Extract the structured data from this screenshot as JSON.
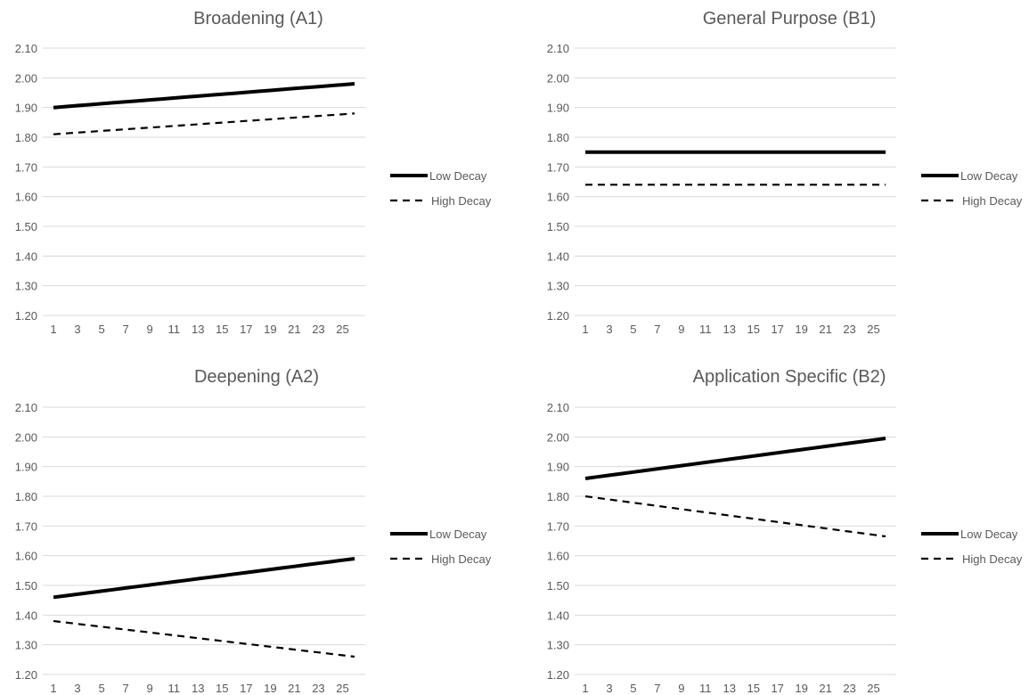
{
  "chart_data": [
    {
      "type": "line",
      "title": "Broadening (A1)",
      "xlabel": "",
      "ylabel": "",
      "x": [
        1,
        2,
        3,
        4,
        5,
        6,
        7,
        8,
        9,
        10,
        11,
        12,
        13,
        14,
        15,
        16,
        17,
        18,
        19,
        20,
        21,
        22,
        23,
        24,
        25,
        26
      ],
      "x_tick_labels": [
        "1",
        "3",
        "5",
        "7",
        "9",
        "11",
        "13",
        "15",
        "17",
        "19",
        "21",
        "23",
        "25"
      ],
      "y_tick_labels": [
        "2.10",
        "2.00",
        "1.90",
        "1.80",
        "1.70",
        "1.60",
        "1.50",
        "1.40",
        "1.30",
        "1.20"
      ],
      "ylim": [
        1.2,
        2.1
      ],
      "grid": true,
      "legend": "right",
      "series": [
        {
          "name": "Low Decay",
          "style": "solid",
          "start": 1.9,
          "end": 1.98
        },
        {
          "name": "High Decay",
          "style": "dashed",
          "start": 1.81,
          "end": 1.88
        }
      ]
    },
    {
      "type": "line",
      "title": "General Purpose (B1)",
      "xlabel": "",
      "ylabel": "",
      "x": [
        1,
        2,
        3,
        4,
        5,
        6,
        7,
        8,
        9,
        10,
        11,
        12,
        13,
        14,
        15,
        16,
        17,
        18,
        19,
        20,
        21,
        22,
        23,
        24,
        25,
        26
      ],
      "x_tick_labels": [
        "1",
        "3",
        "5",
        "7",
        "9",
        "11",
        "13",
        "15",
        "17",
        "19",
        "21",
        "23",
        "25"
      ],
      "y_tick_labels": [
        "2.10",
        "2.00",
        "1.90",
        "1.80",
        "1.70",
        "1.60",
        "1.50",
        "1.40",
        "1.30",
        "1.20"
      ],
      "ylim": [
        1.2,
        2.1
      ],
      "grid": true,
      "legend": "right",
      "series": [
        {
          "name": "Low Decay",
          "style": "solid",
          "start": 1.75,
          "end": 1.75
        },
        {
          "name": "High Decay",
          "style": "dashed",
          "start": 1.64,
          "end": 1.64
        }
      ]
    },
    {
      "type": "line",
      "title": "Deepening (A2)",
      "xlabel": "",
      "ylabel": "",
      "x": [
        1,
        2,
        3,
        4,
        5,
        6,
        7,
        8,
        9,
        10,
        11,
        12,
        13,
        14,
        15,
        16,
        17,
        18,
        19,
        20,
        21,
        22,
        23,
        24,
        25,
        26
      ],
      "x_tick_labels": [
        "1",
        "3",
        "5",
        "7",
        "9",
        "11",
        "13",
        "15",
        "17",
        "19",
        "21",
        "23",
        "25"
      ],
      "y_tick_labels": [
        "2.10",
        "2.00",
        "1.90",
        "1.80",
        "1.70",
        "1.60",
        "1.50",
        "1.40",
        "1.30",
        "1.20"
      ],
      "ylim": [
        1.2,
        2.1
      ],
      "grid": true,
      "legend": "right",
      "series": [
        {
          "name": "Low Decay",
          "style": "solid",
          "start": 1.46,
          "end": 1.59
        },
        {
          "name": "High Decay",
          "style": "dashed",
          "start": 1.38,
          "end": 1.26
        }
      ]
    },
    {
      "type": "line",
      "title": "Application Specific (B2)",
      "xlabel": "",
      "ylabel": "",
      "x": [
        1,
        2,
        3,
        4,
        5,
        6,
        7,
        8,
        9,
        10,
        11,
        12,
        13,
        14,
        15,
        16,
        17,
        18,
        19,
        20,
        21,
        22,
        23,
        24,
        25,
        26
      ],
      "x_tick_labels": [
        "1",
        "3",
        "5",
        "7",
        "9",
        "11",
        "13",
        "15",
        "17",
        "19",
        "21",
        "23",
        "25"
      ],
      "y_tick_labels": [
        "2.10",
        "2.00",
        "1.90",
        "1.80",
        "1.70",
        "1.60",
        "1.50",
        "1.40",
        "1.30",
        "1.20"
      ],
      "ylim": [
        1.2,
        2.1
      ],
      "grid": true,
      "legend": "right",
      "series": [
        {
          "name": "Low Decay",
          "style": "solid",
          "start": 1.86,
          "end": 1.995
        },
        {
          "name": "High Decay",
          "style": "dashed",
          "start": 1.8,
          "end": 1.665
        }
      ]
    }
  ],
  "colors": {
    "line": "#000000",
    "grid": "#d9d9d9",
    "text": "#595959"
  }
}
